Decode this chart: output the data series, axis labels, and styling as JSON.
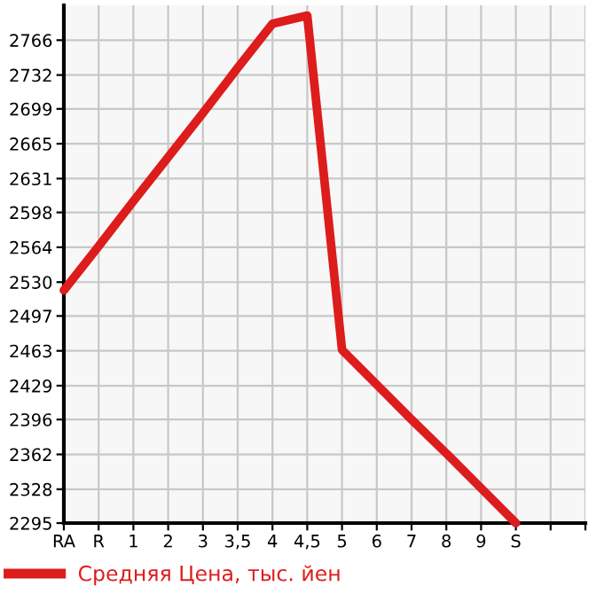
{
  "chart_data": {
    "type": "line",
    "categories": [
      "RA",
      "R",
      "1",
      "2",
      "3",
      "3,5",
      "4",
      "4,5",
      "5",
      "6",
      "7",
      "8",
      "9",
      "S",
      null,
      null
    ],
    "series": [
      {
        "name": "Средняя Цена, тыс. йен",
        "color": "#dd1c1c",
        "values": [
          2522,
          2565,
          2609,
          2652,
          2695,
          2739,
          2782,
          2790,
          2464,
          2430,
          2396,
          2363,
          2329,
          2295,
          null,
          null
        ]
      }
    ],
    "ylim": [
      2295,
      2800
    ],
    "yticks": [
      2295,
      2328,
      2362,
      2396,
      2429,
      2463,
      2497,
      2530,
      2564,
      2598,
      2631,
      2665,
      2699,
      2732,
      2766
    ],
    "grid": true,
    "legend": "bottom left",
    "marker": "none",
    "line_style": "solid"
  }
}
